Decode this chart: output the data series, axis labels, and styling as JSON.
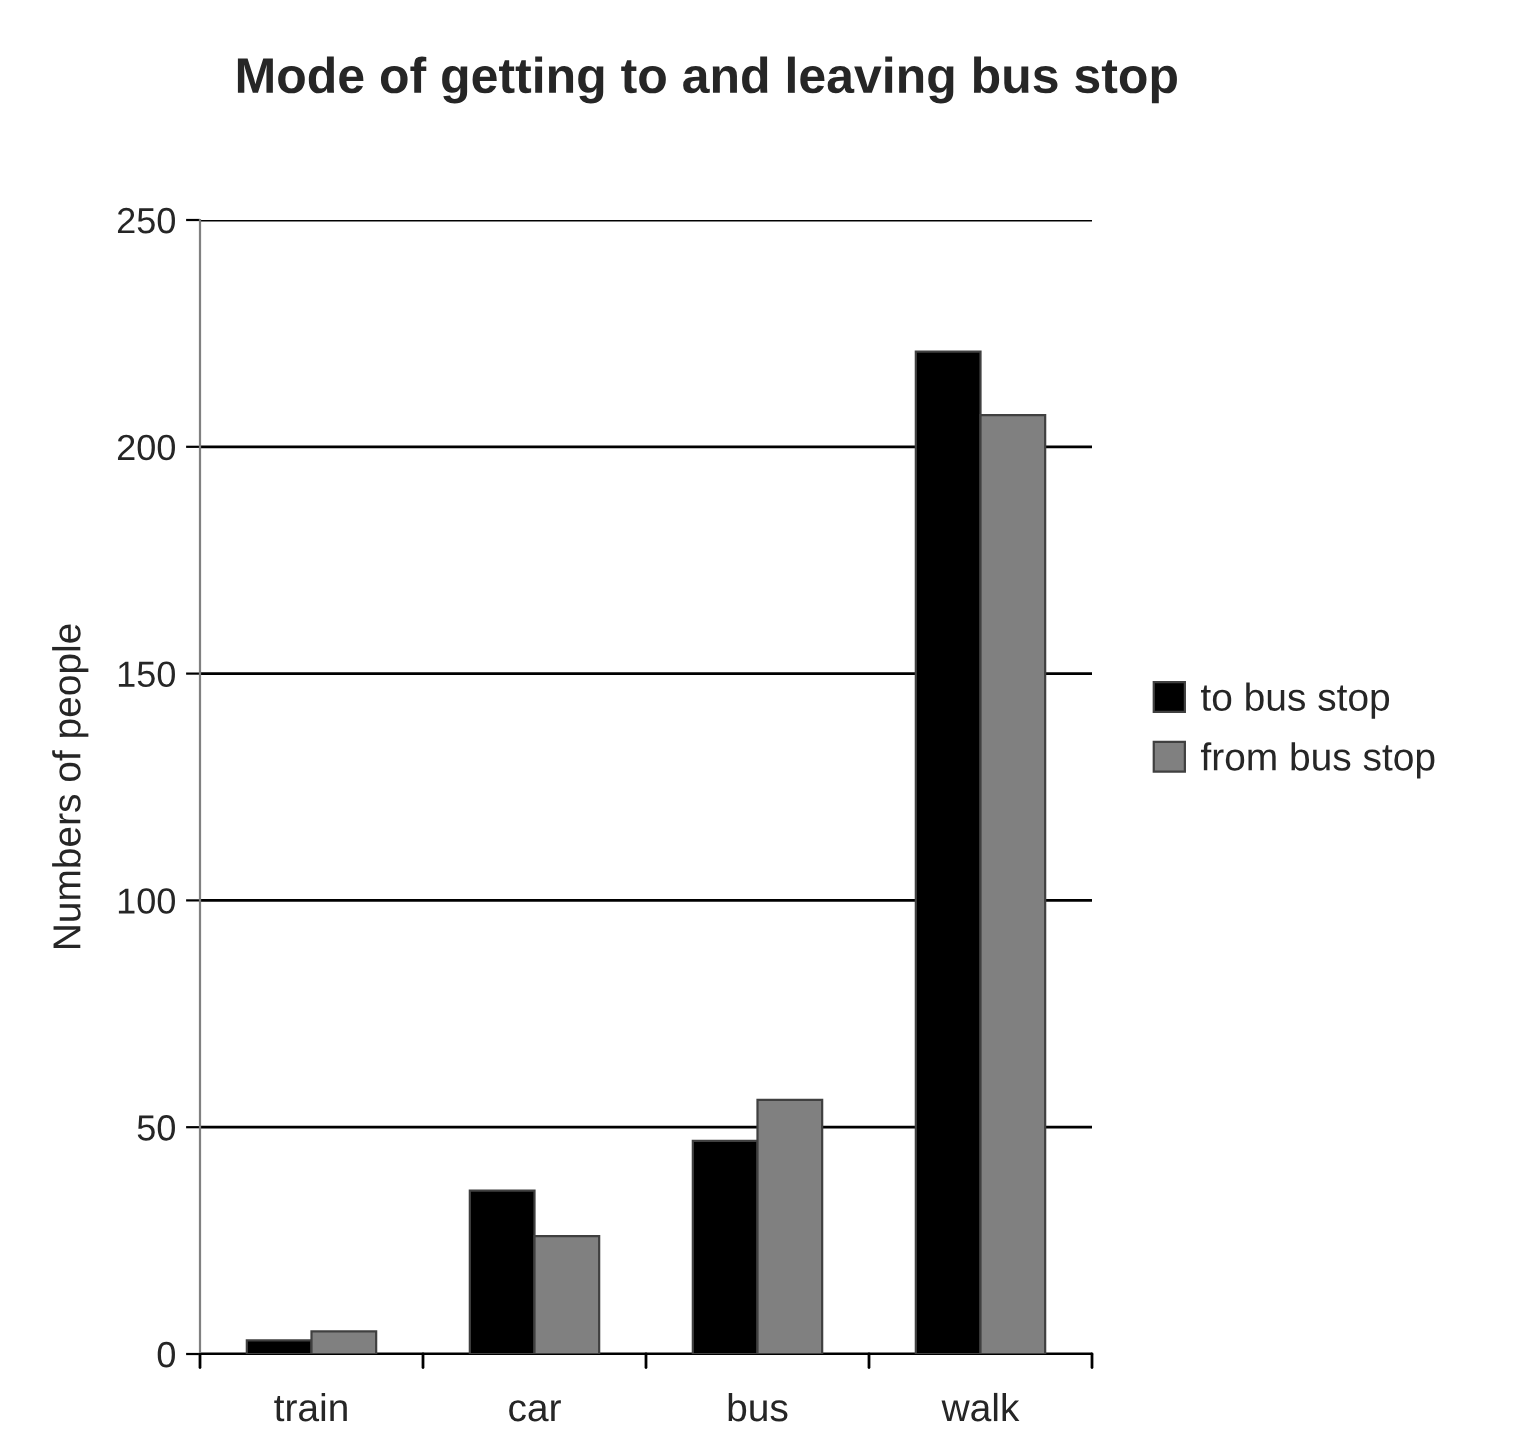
{
  "chart_data": {
    "type": "bar",
    "title": "Mode of getting to and leaving bus stop",
    "ylabel": "Numbers of people",
    "categories": [
      "train",
      "car",
      "bus",
      "walk"
    ],
    "series": [
      {
        "name": "to bus stop",
        "color": "#000000",
        "values": [
          3,
          36,
          47,
          221
        ]
      },
      {
        "name": "from bus stop",
        "color": "#808080",
        "values": [
          5,
          26,
          56,
          207
        ]
      }
    ],
    "ylim": [
      0,
      250
    ],
    "yticks": [
      0,
      50,
      100,
      150,
      200,
      250
    ],
    "grid": "y",
    "legend": "right"
  }
}
